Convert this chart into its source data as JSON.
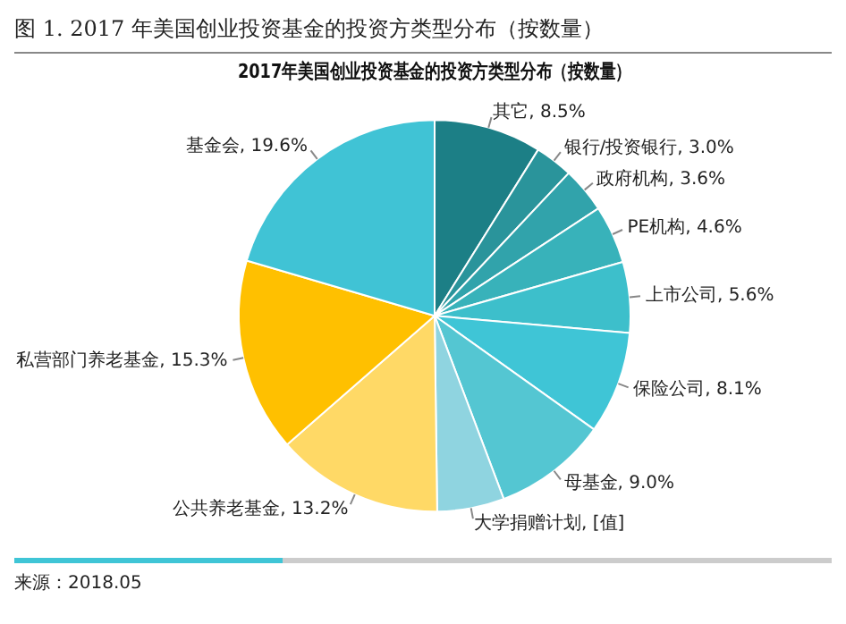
{
  "chart_data": {
    "type": "pie",
    "title": "图 1.  2017 年美国创业投资基金的投资方类型分布（按数量）",
    "subtitle": "2017年美国创业投资基金的投资方类型分布（按数量）",
    "categories": [
      "其它",
      "银行/投资银行",
      "政府机构",
      "PE机构",
      "上市公司",
      "保险公司",
      "母基金",
      "大学捐赠计划",
      "公共养老基金",
      "私营部门养老基金",
      "基金会"
    ],
    "values": [
      8.5,
      3.0,
      3.6,
      4.6,
      5.6,
      8.1,
      9.0,
      5.3,
      13.2,
      15.3,
      19.6
    ],
    "value_labels": [
      "8.5%",
      "3.0%",
      "3.6%",
      "4.6%",
      "5.6%",
      "8.1%",
      "9.0%",
      "[值]",
      "13.2%",
      "15.3%",
      "19.6%"
    ],
    "colors": [
      "#1c7f86",
      "#2a949b",
      "#31a3ab",
      "#38b2ba",
      "#3dbfcb",
      "#3fc5d6",
      "#54c6d2",
      "#8fd4e0",
      "#ffd966",
      "#ffc000",
      "#40c3d5"
    ],
    "annotations": [
      "来源：2018.05"
    ]
  }
}
